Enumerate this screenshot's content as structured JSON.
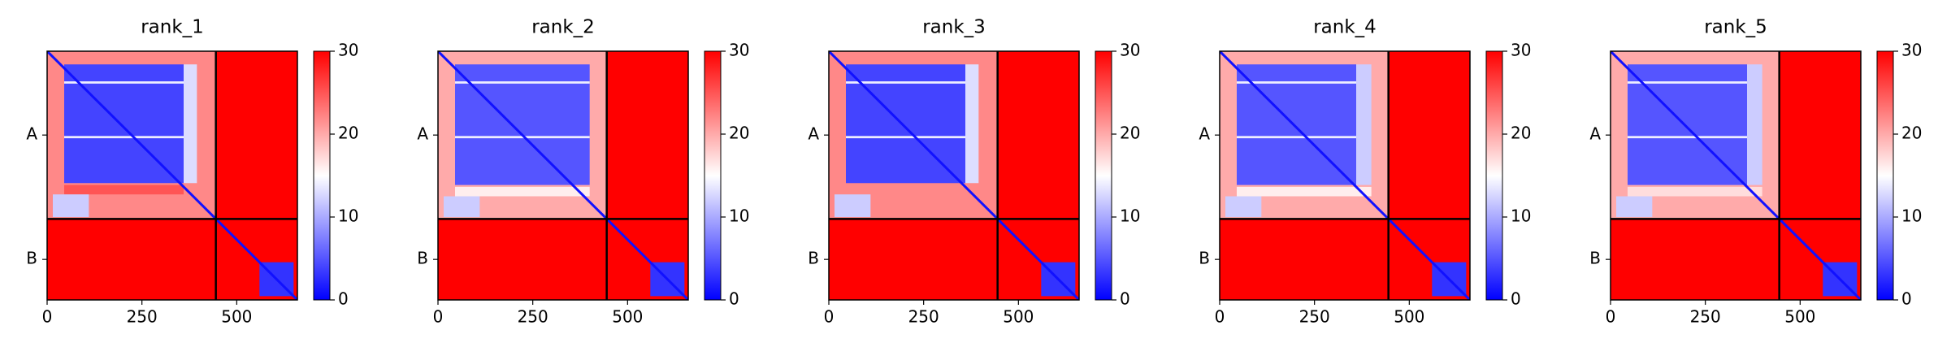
{
  "chart_data": [
    {
      "type": "heatmap",
      "title": "rank_1",
      "xlim": [
        0,
        660
      ],
      "ylim": [
        660,
        0
      ],
      "xticks": [
        0,
        250,
        500
      ],
      "yticks": [
        {
          "value": 222.5,
          "label": "A"
        },
        {
          "value": 552.5,
          "label": "B"
        }
      ],
      "clim": [
        0,
        30
      ],
      "cticks": [
        0,
        10,
        20,
        30
      ],
      "colormap": "bwr",
      "chain_breaks": [
        445
      ],
      "diagonal": 1,
      "blocks": [
        {
          "x": [
            0,
            660
          ],
          "y": [
            0,
            660
          ],
          "value": 30
        },
        {
          "x": [
            0,
            445
          ],
          "y": [
            0,
            445
          ],
          "value": 22
        },
        {
          "x": [
            45,
            360
          ],
          "y": [
            35,
            350
          ],
          "value": 4
        },
        {
          "x": [
            360,
            395
          ],
          "y": [
            35,
            350
          ],
          "value": 13
        },
        {
          "x": [
            45,
            360
          ],
          "y": [
            80,
            86
          ],
          "value": 14
        },
        {
          "x": [
            45,
            360
          ],
          "y": [
            225,
            231
          ],
          "value": 14
        },
        {
          "x": [
            45,
            360
          ],
          "y": [
            355,
            380
          ],
          "value": 25
        },
        {
          "x": [
            15,
            110
          ],
          "y": [
            380,
            440
          ],
          "value": 12
        },
        {
          "x": [
            560,
            650
          ],
          "y": [
            560,
            650
          ],
          "value": 3
        }
      ]
    },
    {
      "type": "heatmap",
      "title": "rank_2",
      "xlim": [
        0,
        660
      ],
      "ylim": [
        660,
        0
      ],
      "xticks": [
        0,
        250,
        500
      ],
      "yticks": [
        {
          "value": 222.5,
          "label": "A"
        },
        {
          "value": 552.5,
          "label": "B"
        }
      ],
      "clim": [
        0,
        30
      ],
      "cticks": [
        0,
        10,
        20,
        30
      ],
      "colormap": "bwr",
      "chain_breaks": [
        445
      ],
      "diagonal": 1,
      "blocks": [
        {
          "x": [
            0,
            660
          ],
          "y": [
            0,
            660
          ],
          "value": 30
        },
        {
          "x": [
            0,
            445
          ],
          "y": [
            0,
            445
          ],
          "value": 20
        },
        {
          "x": [
            45,
            400
          ],
          "y": [
            35,
            355
          ],
          "value": 5
        },
        {
          "x": [
            45,
            400
          ],
          "y": [
            80,
            86
          ],
          "value": 14
        },
        {
          "x": [
            45,
            400
          ],
          "y": [
            225,
            231
          ],
          "value": 14
        },
        {
          "x": [
            45,
            400
          ],
          "y": [
            360,
            385
          ],
          "value": 16
        },
        {
          "x": [
            15,
            110
          ],
          "y": [
            385,
            440
          ],
          "value": 12
        },
        {
          "x": [
            560,
            650
          ],
          "y": [
            560,
            650
          ],
          "value": 3
        }
      ]
    },
    {
      "type": "heatmap",
      "title": "rank_3",
      "xlim": [
        0,
        660
      ],
      "ylim": [
        660,
        0
      ],
      "xticks": [
        0,
        250,
        500
      ],
      "yticks": [
        {
          "value": 222.5,
          "label": "A"
        },
        {
          "value": 552.5,
          "label": "B"
        }
      ],
      "clim": [
        0,
        30
      ],
      "cticks": [
        0,
        10,
        20,
        30
      ],
      "colormap": "bwr",
      "chain_breaks": [
        445
      ],
      "diagonal": 1,
      "blocks": [
        {
          "x": [
            0,
            660
          ],
          "y": [
            0,
            660
          ],
          "value": 30
        },
        {
          "x": [
            0,
            445
          ],
          "y": [
            0,
            445
          ],
          "value": 22
        },
        {
          "x": [
            45,
            360
          ],
          "y": [
            35,
            350
          ],
          "value": 4
        },
        {
          "x": [
            360,
            395
          ],
          "y": [
            35,
            350
          ],
          "value": 13
        },
        {
          "x": [
            45,
            360
          ],
          "y": [
            80,
            86
          ],
          "value": 14
        },
        {
          "x": [
            45,
            360
          ],
          "y": [
            225,
            231
          ],
          "value": 14
        },
        {
          "x": [
            45,
            360
          ],
          "y": [
            355,
            380
          ],
          "value": 22
        },
        {
          "x": [
            15,
            110
          ],
          "y": [
            380,
            440
          ],
          "value": 12
        },
        {
          "x": [
            560,
            650
          ],
          "y": [
            560,
            650
          ],
          "value": 3
        }
      ]
    },
    {
      "type": "heatmap",
      "title": "rank_4",
      "xlim": [
        0,
        660
      ],
      "ylim": [
        660,
        0
      ],
      "xticks": [
        0,
        250,
        500
      ],
      "yticks": [
        {
          "value": 222.5,
          "label": "A"
        },
        {
          "value": 552.5,
          "label": "B"
        }
      ],
      "clim": [
        0,
        30
      ],
      "cticks": [
        0,
        10,
        20,
        30
      ],
      "colormap": "bwr",
      "chain_breaks": [
        445
      ],
      "diagonal": 1,
      "blocks": [
        {
          "x": [
            0,
            660
          ],
          "y": [
            0,
            660
          ],
          "value": 30
        },
        {
          "x": [
            0,
            445
          ],
          "y": [
            0,
            445
          ],
          "value": 20
        },
        {
          "x": [
            45,
            360
          ],
          "y": [
            35,
            355
          ],
          "value": 5
        },
        {
          "x": [
            360,
            400
          ],
          "y": [
            35,
            355
          ],
          "value": 12
        },
        {
          "x": [
            45,
            360
          ],
          "y": [
            80,
            86
          ],
          "value": 14
        },
        {
          "x": [
            45,
            360
          ],
          "y": [
            225,
            231
          ],
          "value": 14
        },
        {
          "x": [
            45,
            400
          ],
          "y": [
            360,
            385
          ],
          "value": 16
        },
        {
          "x": [
            15,
            110
          ],
          "y": [
            385,
            440
          ],
          "value": 12
        },
        {
          "x": [
            560,
            650
          ],
          "y": [
            560,
            650
          ],
          "value": 3
        }
      ]
    },
    {
      "type": "heatmap",
      "title": "rank_5",
      "xlim": [
        0,
        660
      ],
      "ylim": [
        660,
        0
      ],
      "xticks": [
        0,
        250,
        500
      ],
      "yticks": [
        {
          "value": 222.5,
          "label": "A"
        },
        {
          "value": 552.5,
          "label": "B"
        }
      ],
      "clim": [
        0,
        30
      ],
      "cticks": [
        0,
        10,
        20,
        30
      ],
      "colormap": "bwr",
      "chain_breaks": [
        445
      ],
      "diagonal": 1,
      "blocks": [
        {
          "x": [
            0,
            660
          ],
          "y": [
            0,
            660
          ],
          "value": 30
        },
        {
          "x": [
            0,
            445
          ],
          "y": [
            0,
            445
          ],
          "value": 20
        },
        {
          "x": [
            45,
            360
          ],
          "y": [
            35,
            355
          ],
          "value": 5
        },
        {
          "x": [
            360,
            400
          ],
          "y": [
            35,
            355
          ],
          "value": 12
        },
        {
          "x": [
            45,
            360
          ],
          "y": [
            80,
            86
          ],
          "value": 14
        },
        {
          "x": [
            45,
            360
          ],
          "y": [
            225,
            231
          ],
          "value": 14
        },
        {
          "x": [
            45,
            400
          ],
          "y": [
            360,
            385
          ],
          "value": 17
        },
        {
          "x": [
            15,
            110
          ],
          "y": [
            385,
            440
          ],
          "value": 12
        },
        {
          "x": [
            560,
            650
          ],
          "y": [
            560,
            650
          ],
          "value": 3
        }
      ]
    }
  ]
}
